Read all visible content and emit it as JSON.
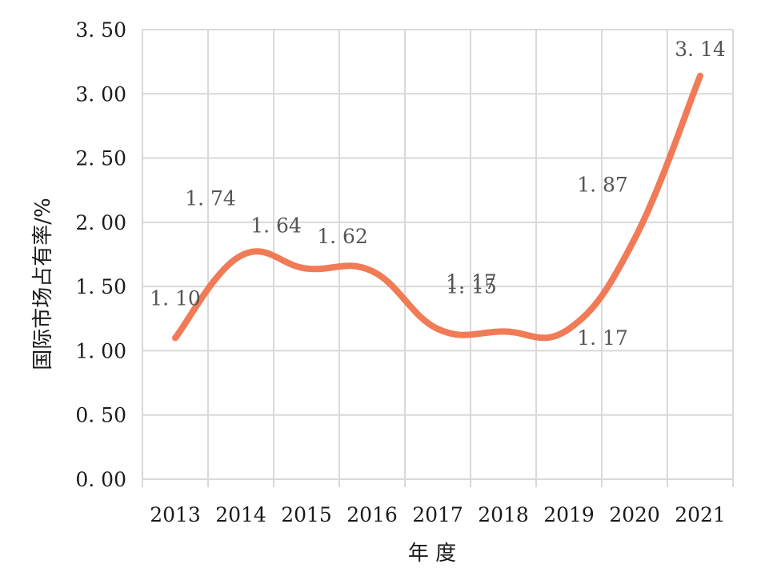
{
  "chart_data": {
    "type": "line",
    "title": "",
    "xlabel": "年 度",
    "ylabel": "国际市场占有率/%",
    "categories": [
      "2013",
      "2014",
      "2015",
      "2016",
      "2017",
      "2018",
      "2019",
      "2020",
      "2021"
    ],
    "values": [
      1.1,
      1.74,
      1.64,
      1.62,
      1.17,
      1.15,
      1.17,
      1.87,
      3.14
    ],
    "data_label_text": [
      "1. 10",
      "1. 74",
      "1. 64",
      "1. 62",
      "1. 17",
      "1. 15",
      "1. 17",
      "1. 87",
      "3. 14"
    ],
    "ylim": [
      0,
      3.5
    ],
    "y_ticks": [
      0,
      0.5,
      1.0,
      1.5,
      2.0,
      2.5,
      3.0,
      3.5
    ],
    "y_tick_labels": [
      "0. 00",
      "0. 50",
      "1. 00",
      "1. 50",
      "2. 00",
      "2. 50",
      "3. 00",
      "3. 50"
    ],
    "grid": true,
    "smooth": true,
    "legend": "none",
    "line_color": "#f07b56",
    "grid_color": "#d9d9d9"
  }
}
